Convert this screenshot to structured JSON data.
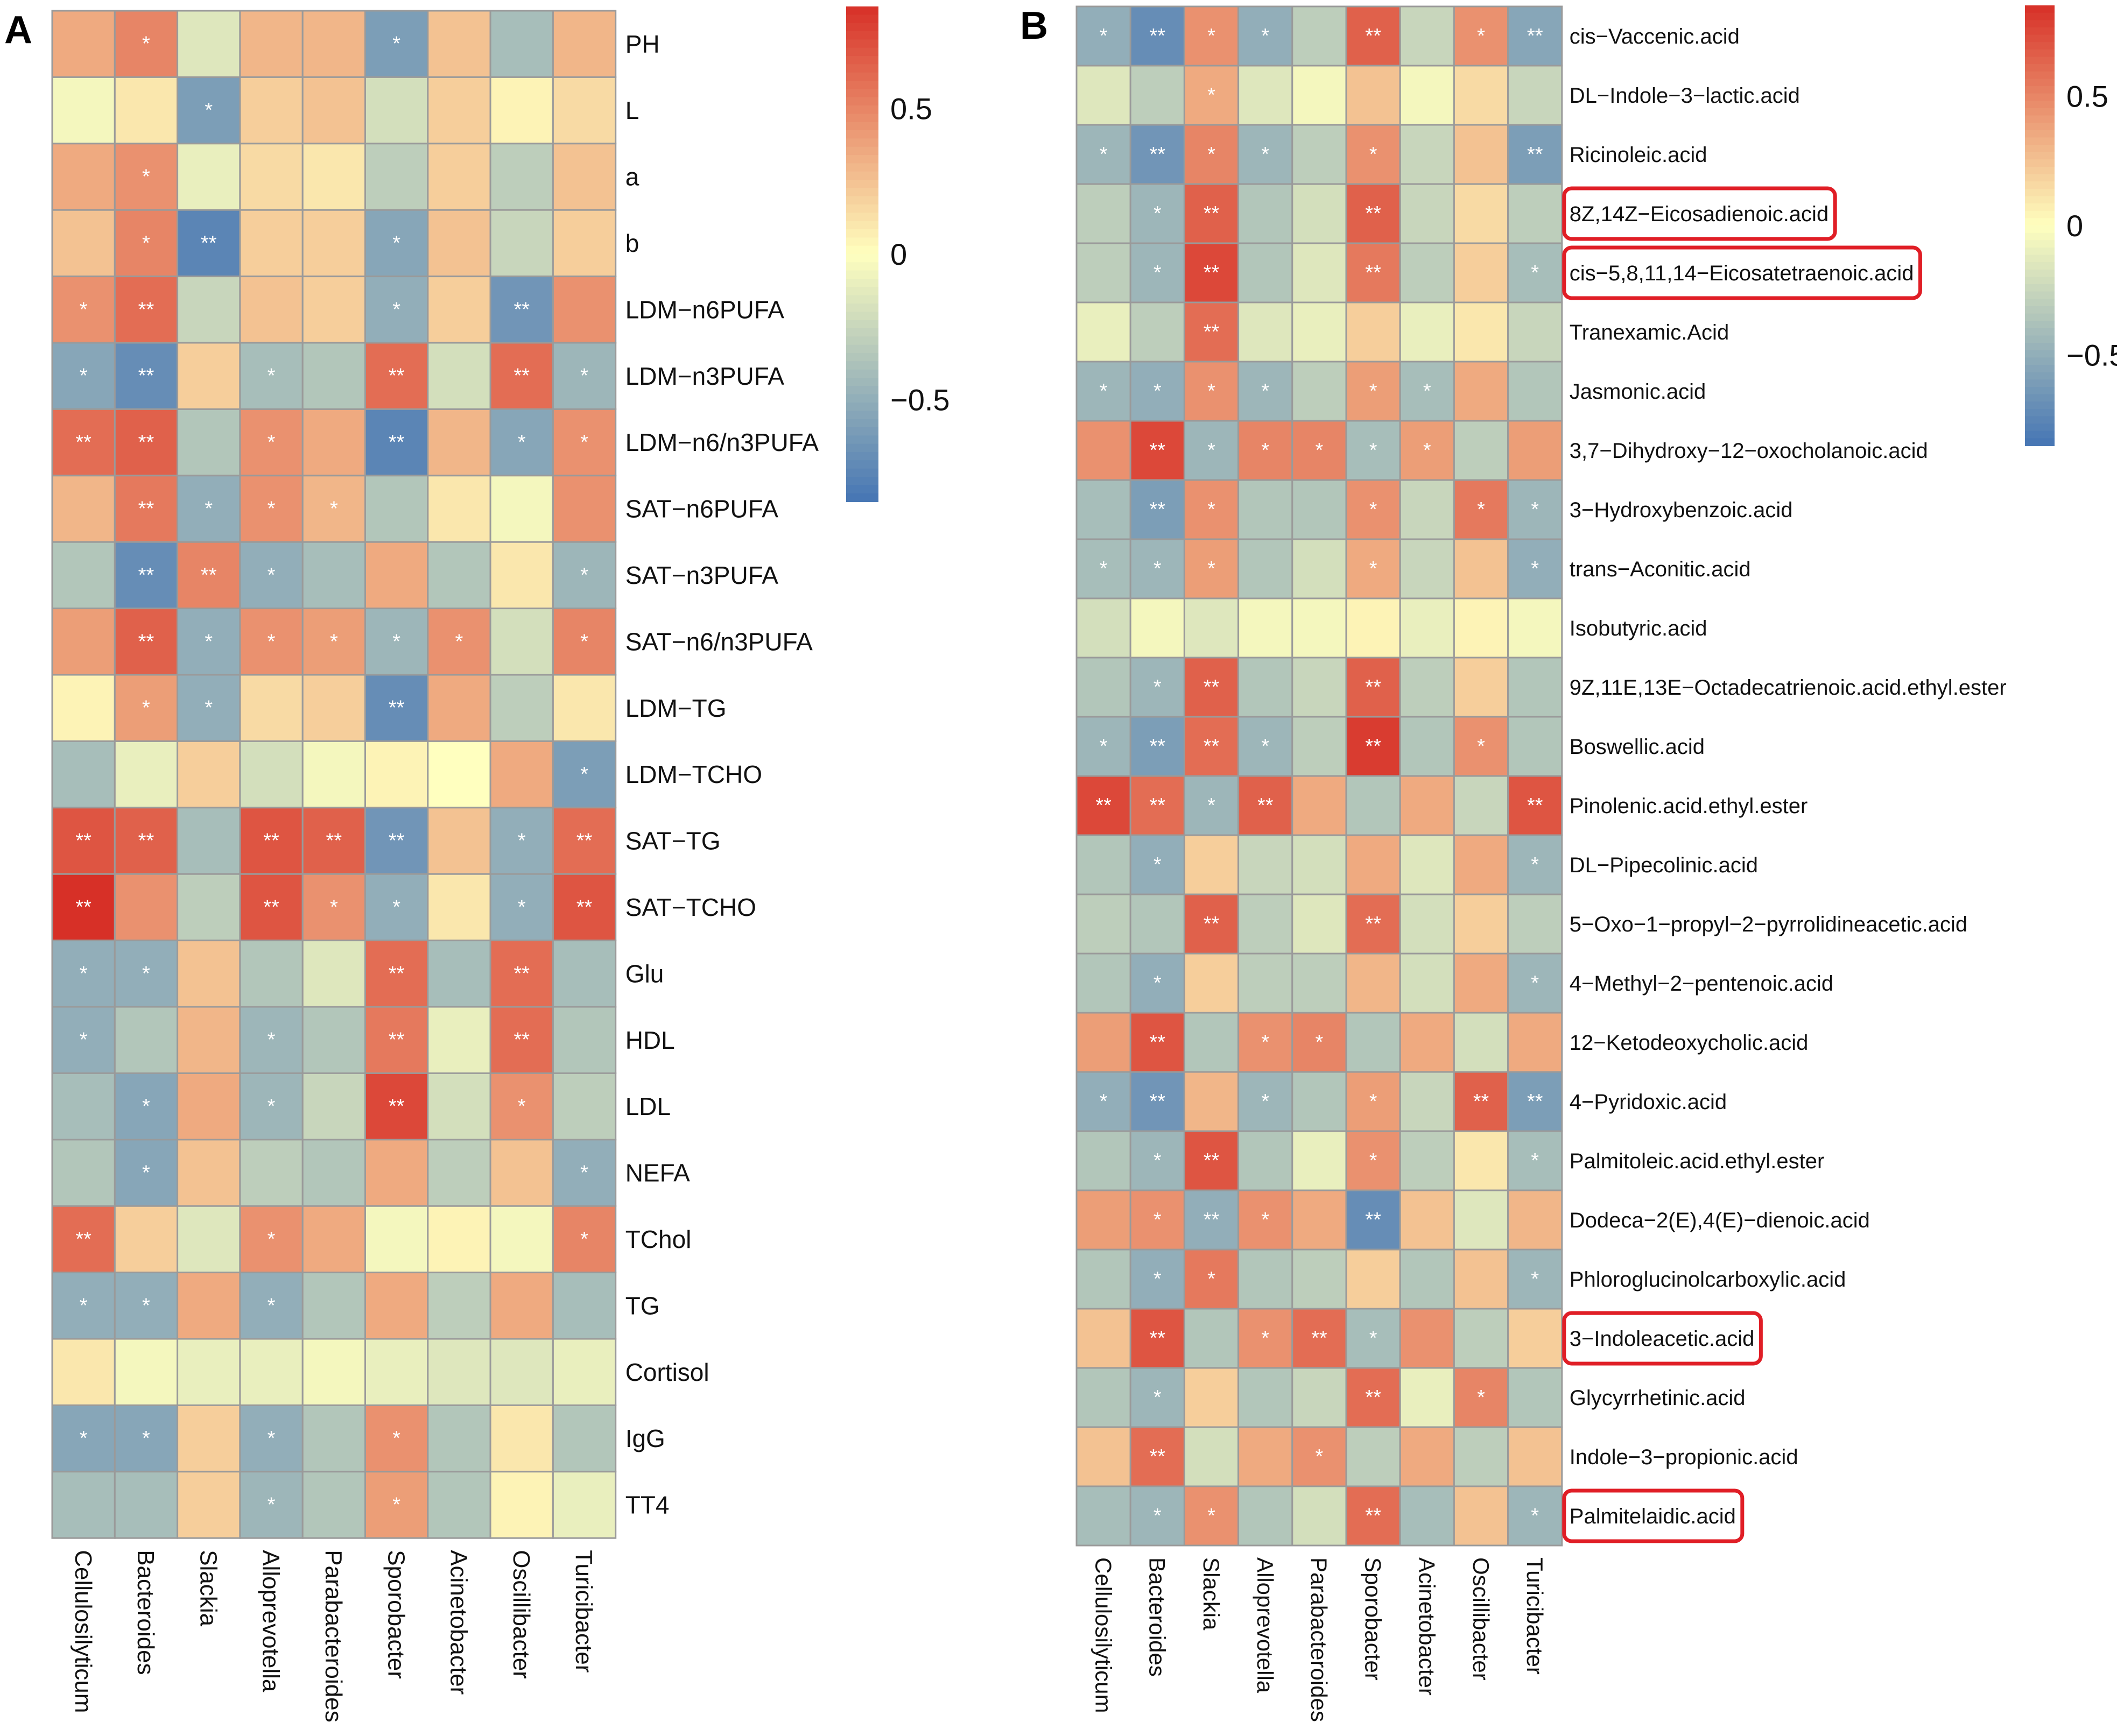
{
  "figure": {
    "description_free": true
  },
  "colors": {
    "low": "#4575b4",
    "mid": "#ffffbf",
    "high": "#d73027",
    "grid": "#9a9a9a",
    "star": "#ffffff",
    "highlight": "#e01e26"
  },
  "chart_data": [
    {
      "type": "heatmap",
      "panel_label": "A",
      "title": "",
      "columns": [
        "Cellulosilyticum",
        "Bacteroides",
        "Slackia",
        "Alloprevotella",
        "Parabacteroides",
        "Sporobacter",
        "Acinetobacter",
        "Oscillibacter",
        "Turicibacter"
      ],
      "rows": [
        "PH",
        "L",
        "a",
        "b",
        "LDM−n6PUFA",
        "LDM−n3PUFA",
        "LDM−n6/n3PUFA",
        "SAT−n6PUFA",
        "SAT−n3PUFA",
        "SAT−n6/n3PUFA",
        "LDM−TG",
        "LDM−TCHO",
        "SAT−TG",
        "SAT−TCHO",
        "Glu",
        "HDL",
        "LDL",
        "NEFA",
        "TChol",
        "TG",
        "Cortisol",
        "IgG",
        "TT4"
      ],
      "values": [
        [
          0.35,
          0.5,
          -0.15,
          0.3,
          0.3,
          -0.6,
          0.25,
          -0.4,
          0.3
        ],
        [
          -0.05,
          0.1,
          -0.6,
          0.2,
          0.25,
          -0.2,
          0.2,
          0.05,
          0.15
        ],
        [
          0.35,
          0.45,
          -0.1,
          0.15,
          0.1,
          -0.3,
          0.2,
          -0.3,
          0.25
        ],
        [
          0.25,
          0.5,
          -0.75,
          0.2,
          0.2,
          -0.55,
          0.25,
          -0.25,
          0.2
        ],
        [
          0.45,
          0.6,
          -0.25,
          0.25,
          0.2,
          -0.5,
          0.2,
          -0.65,
          0.45
        ],
        [
          -0.55,
          -0.7,
          0.2,
          -0.4,
          -0.35,
          0.6,
          -0.2,
          0.6,
          -0.45
        ],
        [
          0.6,
          0.65,
          -0.35,
          0.45,
          0.35,
          -0.75,
          0.3,
          -0.55,
          0.45
        ],
        [
          0.3,
          0.55,
          -0.5,
          0.45,
          0.3,
          -0.35,
          0.1,
          -0.05,
          0.45
        ],
        [
          -0.35,
          -0.7,
          0.5,
          -0.5,
          -0.4,
          0.35,
          -0.35,
          0.1,
          -0.45
        ],
        [
          0.4,
          0.65,
          -0.5,
          0.45,
          0.4,
          -0.45,
          0.45,
          -0.2,
          0.5
        ],
        [
          0.05,
          0.4,
          -0.5,
          0.15,
          0.2,
          -0.7,
          0.35,
          -0.3,
          0.1
        ],
        [
          -0.4,
          -0.1,
          0.2,
          -0.2,
          -0.05,
          0.05,
          0.0,
          0.35,
          -0.6
        ],
        [
          0.7,
          0.65,
          -0.4,
          0.7,
          0.65,
          -0.65,
          0.25,
          -0.5,
          0.6
        ],
        [
          0.85,
          0.45,
          -0.3,
          0.7,
          0.45,
          -0.5,
          0.1,
          -0.5,
          0.7
        ],
        [
          -0.5,
          -0.5,
          0.25,
          -0.35,
          -0.15,
          0.6,
          -0.4,
          0.6,
          -0.4
        ],
        [
          -0.5,
          -0.35,
          0.3,
          -0.45,
          -0.35,
          0.55,
          -0.1,
          0.6,
          -0.35
        ],
        [
          -0.4,
          -0.55,
          0.35,
          -0.45,
          -0.25,
          0.75,
          -0.2,
          0.45,
          -0.3
        ],
        [
          -0.35,
          -0.55,
          0.25,
          -0.3,
          -0.35,
          0.35,
          -0.3,
          0.25,
          -0.5
        ],
        [
          0.6,
          0.2,
          -0.15,
          0.45,
          0.35,
          -0.05,
          0.05,
          -0.05,
          0.5
        ],
        [
          -0.5,
          -0.5,
          0.35,
          -0.5,
          -0.35,
          0.35,
          -0.3,
          0.35,
          -0.4
        ],
        [
          0.1,
          -0.05,
          -0.1,
          -0.1,
          -0.05,
          -0.1,
          -0.15,
          -0.15,
          -0.1
        ],
        [
          -0.55,
          -0.55,
          0.2,
          -0.5,
          -0.35,
          0.45,
          -0.35,
          0.1,
          -0.35
        ],
        [
          -0.4,
          -0.4,
          0.2,
          -0.45,
          -0.35,
          0.4,
          -0.35,
          0.05,
          -0.1
        ]
      ],
      "stars": [
        [
          "",
          "*",
          "",
          "",
          "",
          "*",
          "",
          "",
          ""
        ],
        [
          "",
          "",
          "*",
          "",
          "",
          "",
          "",
          "",
          ""
        ],
        [
          "",
          "*",
          "",
          "",
          "",
          "",
          "",
          "",
          ""
        ],
        [
          "",
          "*",
          "**",
          "",
          "",
          "*",
          "",
          "",
          ""
        ],
        [
          "*",
          "**",
          "",
          "",
          "",
          "*",
          "",
          "**",
          ""
        ],
        [
          "*",
          "**",
          "",
          "*",
          "",
          "**",
          "",
          "**",
          "*"
        ],
        [
          "**",
          "**",
          "",
          "*",
          "",
          "**",
          "",
          "*",
          "*"
        ],
        [
          "",
          "**",
          "*",
          "*",
          "*",
          "",
          "",
          "",
          ""
        ],
        [
          "",
          "**",
          "**",
          "*",
          "",
          "",
          "",
          "",
          "*"
        ],
        [
          "",
          "**",
          "*",
          "*",
          "*",
          "*",
          "*",
          "",
          "*"
        ],
        [
          "",
          "*",
          "*",
          "",
          "",
          "**",
          "",
          "",
          ""
        ],
        [
          "",
          "",
          "",
          "",
          "",
          "",
          "",
          "",
          "*"
        ],
        [
          "**",
          "**",
          "",
          "**",
          "**",
          "**",
          "",
          "*",
          "**"
        ],
        [
          "**",
          "",
          "",
          "**",
          "*",
          "*",
          "",
          "*",
          "**"
        ],
        [
          "*",
          "*",
          "",
          "",
          "",
          "**",
          "",
          "**",
          ""
        ],
        [
          "*",
          "",
          "",
          "*",
          "",
          "**",
          "",
          "**",
          ""
        ],
        [
          "",
          "*",
          "",
          "*",
          "",
          "**",
          "",
          "*",
          ""
        ],
        [
          "",
          "*",
          "",
          "",
          "",
          "",
          "",
          "",
          "*"
        ],
        [
          "**",
          "",
          "",
          "*",
          "",
          "",
          "",
          "",
          "*"
        ],
        [
          "*",
          "*",
          "",
          "*",
          "",
          "",
          "",
          "",
          ""
        ],
        [
          "",
          "",
          "",
          "",
          "",
          "",
          "",
          "",
          ""
        ],
        [
          "*",
          "*",
          "",
          "*",
          "",
          "*",
          "",
          "",
          ""
        ],
        [
          "",
          "",
          "",
          "*",
          "",
          "*",
          "",
          "",
          ""
        ]
      ],
      "highlighted_rows": [],
      "legend": {
        "ticks": [
          0.5,
          0,
          -0.5
        ],
        "tick_labels": [
          "0.5",
          "0",
          "−0.5"
        ],
        "range": [
          -0.85,
          0.85
        ]
      }
    },
    {
      "type": "heatmap",
      "panel_label": "B",
      "title": "",
      "columns": [
        "Cellulosilyticum",
        "Bacteroides",
        "Slackia",
        "Alloprevotella",
        "Parabacteroides",
        "Sporobacter",
        "Acinetobacter",
        "Oscillibacter",
        "Turicibacter"
      ],
      "rows": [
        "cis−Vaccenic.acid",
        "DL−Indole−3−lactic.acid",
        "Ricinoleic.acid",
        "8Z,14Z−Eicosadienoic.acid",
        "cis−5,8,11,14−Eicosatetraenoic.acid",
        "Tranexamic.Acid",
        "Jasmonic.acid",
        "3,7−Dihydroxy−12−oxocholanoic.acid",
        "3−Hydroxybenzoic.acid",
        "trans−Aconitic.acid",
        "Isobutyric.acid",
        "9Z,11E,13E−Octadecatrienoic.acid.ethyl.ester",
        "Boswellic.acid",
        "Pinolenic.acid.ethyl.ester",
        "DL−Pipecolinic.acid",
        "5−Oxo−1−propyl−2−pyrrolidineacetic.acid",
        "4−Methyl−2−pentenoic.acid",
        "12−Ketodeoxycholic.acid",
        "4−Pyridoxic.acid",
        "Palmitoleic.acid.ethyl.ester",
        "Dodeca−2(E),4(E)−dienoic.acid",
        "Phloroglucinolcarboxylic.acid",
        "3−Indoleacetic.acid",
        "Glycyrrhetinic.acid",
        "Indole−3−propionic.acid",
        "Palmitelaidic.acid"
      ],
      "values": [
        [
          -0.5,
          -0.7,
          0.45,
          -0.5,
          -0.3,
          0.65,
          -0.25,
          0.45,
          -0.55
        ],
        [
          -0.15,
          -0.3,
          0.35,
          -0.15,
          -0.05,
          0.25,
          -0.05,
          0.15,
          -0.25
        ],
        [
          -0.45,
          -0.65,
          0.5,
          -0.45,
          -0.3,
          0.45,
          -0.25,
          0.25,
          -0.6
        ],
        [
          -0.3,
          -0.45,
          0.65,
          -0.35,
          -0.2,
          0.65,
          -0.25,
          0.15,
          -0.3
        ],
        [
          -0.3,
          -0.45,
          0.75,
          -0.35,
          -0.15,
          0.55,
          -0.3,
          0.2,
          -0.4
        ],
        [
          -0.1,
          -0.3,
          0.6,
          -0.15,
          -0.1,
          0.2,
          -0.1,
          0.1,
          -0.25
        ],
        [
          -0.45,
          -0.5,
          0.45,
          -0.45,
          -0.3,
          0.4,
          -0.4,
          0.35,
          -0.35
        ],
        [
          0.45,
          0.75,
          -0.45,
          0.5,
          0.5,
          -0.4,
          0.4,
          -0.3,
          0.4
        ],
        [
          -0.4,
          -0.6,
          0.45,
          -0.35,
          -0.35,
          0.45,
          -0.25,
          0.55,
          -0.45
        ],
        [
          -0.4,
          -0.45,
          0.4,
          -0.35,
          -0.2,
          0.35,
          -0.25,
          0.25,
          -0.5
        ],
        [
          -0.2,
          -0.05,
          -0.15,
          -0.05,
          -0.05,
          0.05,
          -0.1,
          0.05,
          -0.05
        ],
        [
          -0.35,
          -0.45,
          0.65,
          -0.35,
          -0.25,
          0.65,
          -0.3,
          0.2,
          -0.35
        ],
        [
          -0.45,
          -0.6,
          0.6,
          -0.45,
          -0.3,
          0.8,
          -0.35,
          0.45,
          -0.35
        ],
        [
          0.75,
          0.6,
          -0.45,
          0.65,
          0.35,
          -0.35,
          0.35,
          -0.25,
          0.7
        ],
        [
          -0.35,
          -0.5,
          0.2,
          -0.25,
          -0.2,
          0.35,
          -0.15,
          0.35,
          -0.45
        ],
        [
          -0.3,
          -0.35,
          0.65,
          -0.3,
          -0.15,
          0.6,
          -0.2,
          0.2,
          -0.3
        ],
        [
          -0.35,
          -0.5,
          0.2,
          -0.3,
          -0.3,
          0.3,
          -0.2,
          0.35,
          -0.45
        ],
        [
          0.4,
          0.7,
          -0.35,
          0.45,
          0.5,
          -0.35,
          0.35,
          -0.2,
          0.35
        ],
        [
          -0.5,
          -0.65,
          0.3,
          -0.45,
          -0.35,
          0.4,
          -0.25,
          0.65,
          -0.6
        ],
        [
          -0.35,
          -0.45,
          0.7,
          -0.35,
          -0.1,
          0.45,
          -0.3,
          0.1,
          -0.4
        ],
        [
          0.4,
          0.45,
          -0.5,
          0.45,
          0.35,
          -0.7,
          0.25,
          -0.15,
          0.3
        ],
        [
          -0.35,
          -0.5,
          0.55,
          -0.35,
          -0.3,
          0.2,
          -0.35,
          0.25,
          -0.45
        ],
        [
          0.25,
          0.7,
          -0.35,
          0.45,
          0.6,
          -0.4,
          0.45,
          -0.3,
          0.2
        ],
        [
          -0.35,
          -0.45,
          0.2,
          -0.35,
          -0.25,
          0.6,
          -0.1,
          0.5,
          -0.35
        ],
        [
          0.25,
          0.6,
          -0.2,
          0.35,
          0.45,
          -0.3,
          0.35,
          -0.3,
          0.25
        ],
        [
          -0.4,
          -0.45,
          0.45,
          -0.35,
          -0.2,
          0.6,
          -0.4,
          0.25,
          -0.45
        ]
      ],
      "stars": [
        [
          "*",
          "**",
          "*",
          "*",
          "",
          "**",
          "",
          "*",
          "**"
        ],
        [
          "",
          "",
          "*",
          "",
          "",
          "",
          "",
          "",
          ""
        ],
        [
          "*",
          "**",
          "*",
          "*",
          "",
          "*",
          "",
          "",
          "**"
        ],
        [
          "",
          "*",
          "**",
          "",
          "",
          "**",
          "",
          "",
          ""
        ],
        [
          "",
          "*",
          "**",
          "",
          "",
          "**",
          "",
          "",
          "*"
        ],
        [
          "",
          "",
          "**",
          "",
          "",
          "",
          "",
          "",
          ""
        ],
        [
          "*",
          "*",
          "*",
          "*",
          "",
          "*",
          "*",
          "",
          ""
        ],
        [
          "",
          "**",
          "*",
          "*",
          "*",
          "*",
          "*",
          "",
          ""
        ],
        [
          "",
          "**",
          "*",
          "",
          "",
          "*",
          "",
          "*",
          "*"
        ],
        [
          "*",
          "*",
          "*",
          "",
          "",
          "*",
          "",
          "",
          "*"
        ],
        [
          "",
          "",
          "",
          "",
          "",
          "",
          "",
          "",
          ""
        ],
        [
          "",
          "*",
          "**",
          "",
          "",
          "**",
          "",
          "",
          ""
        ],
        [
          "*",
          "**",
          "**",
          "*",
          "",
          "**",
          "",
          "*",
          ""
        ],
        [
          "**",
          "**",
          "*",
          "**",
          "",
          "",
          "",
          "",
          "**"
        ],
        [
          "",
          "*",
          "",
          "",
          "",
          "",
          "",
          "",
          "*"
        ],
        [
          "",
          "",
          "**",
          "",
          "",
          "**",
          "",
          "",
          ""
        ],
        [
          "",
          "*",
          "",
          "",
          "",
          "",
          "",
          "",
          "*"
        ],
        [
          "",
          "**",
          "",
          "*",
          "*",
          "",
          "",
          "",
          ""
        ],
        [
          "*",
          "**",
          "",
          "*",
          "",
          "*",
          "",
          "**",
          "**"
        ],
        [
          "",
          "*",
          "**",
          "",
          "",
          "*",
          "",
          "",
          "*"
        ],
        [
          "",
          "*",
          "**",
          "*",
          "",
          "**",
          "",
          "",
          ""
        ],
        [
          "",
          "*",
          "*",
          "",
          "",
          "",
          "",
          "",
          "*"
        ],
        [
          "",
          "**",
          "",
          "*",
          "**",
          "*",
          "",
          "",
          ""
        ],
        [
          "",
          "*",
          "",
          "",
          "",
          "**",
          "",
          "*",
          ""
        ],
        [
          "",
          "**",
          "",
          "",
          "*",
          "",
          "",
          "",
          ""
        ],
        [
          "",
          "*",
          "*",
          "",
          "",
          "**",
          "",
          "",
          "*"
        ]
      ],
      "highlighted_rows": [
        3,
        4,
        22,
        25
      ],
      "legend": {
        "ticks": [
          0.5,
          0,
          -0.5
        ],
        "tick_labels": [
          "0.5",
          "0",
          "−0.5"
        ],
        "range": [
          -0.85,
          0.85
        ]
      }
    }
  ]
}
